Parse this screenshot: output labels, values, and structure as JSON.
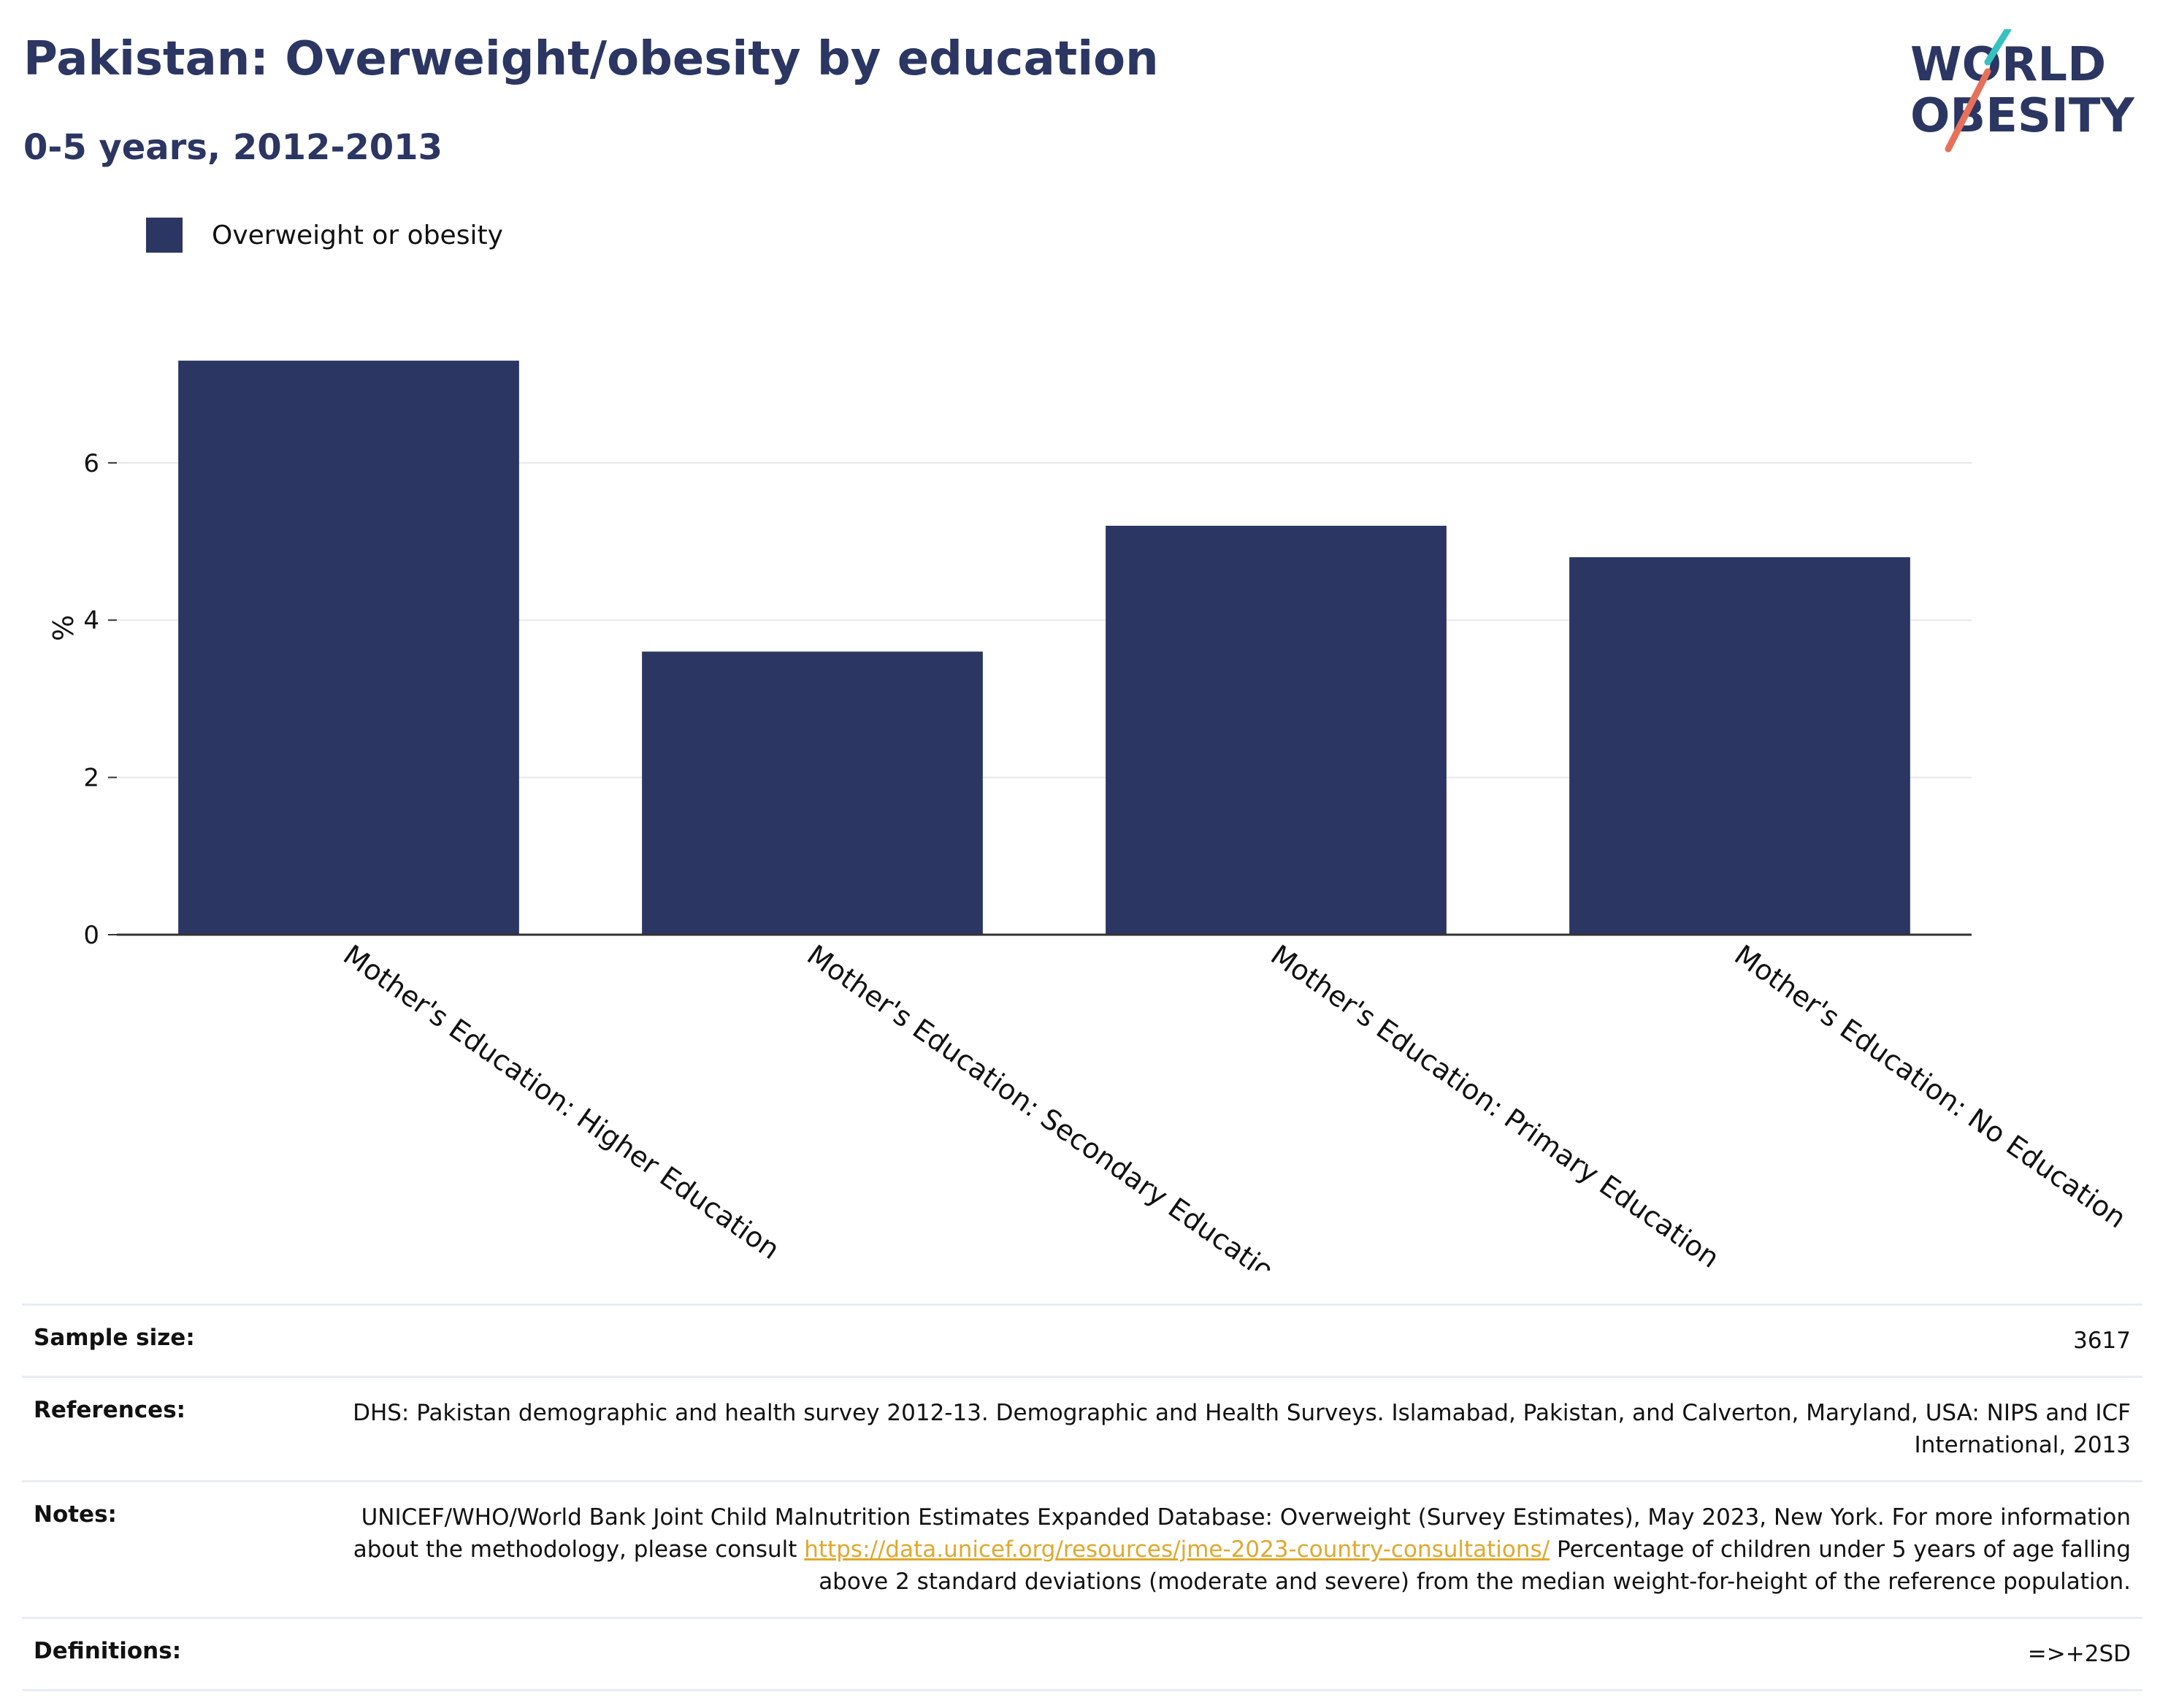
{
  "header": {
    "title": "Pakistan: Overweight/obesity by education",
    "subtitle": "0-5 years, 2012-2013"
  },
  "logo": {
    "line1": "WORLD",
    "line2": "OBESITY",
    "slash_colors": [
      "#35c2c0",
      "#e8705a"
    ]
  },
  "colors": {
    "bar": "#2b3662",
    "title": "#2b3662",
    "gridline": "#e6e8ee",
    "axis": "#333333",
    "link": "#e0a82e"
  },
  "chart_data": {
    "type": "bar",
    "title": "Pakistan: Overweight/obesity by education",
    "subtitle": "0-5 years, 2012-2013",
    "xlabel": "",
    "ylabel": "%",
    "ylim": [
      0,
      7.8
    ],
    "yticks": [
      0,
      2,
      4,
      6
    ],
    "grid": true,
    "legend_position": "top-left",
    "categories": [
      "Mother's Education: Higher Education",
      "Mother's Education: Secondary Education",
      "Mother's Education: Primary Education",
      "Mother's Education: No Education"
    ],
    "series": [
      {
        "name": "Overweight or obesity",
        "values": [
          7.3,
          3.6,
          5.2,
          4.8
        ]
      }
    ]
  },
  "info_table": {
    "sample_size_label": "Sample size:",
    "sample_size_value": "3617",
    "references_label": "References:",
    "references_value": "DHS: Pakistan demographic and health survey 2012-13. Demographic and Health Surveys. Islamabad, Pakistan, and Calverton, Maryland, USA: NIPS and ICF International, 2013",
    "notes_label": "Notes:",
    "notes_before": "UNICEF/WHO/World Bank Joint Child Malnutrition Estimates Expanded Database: Overweight (Survey Estimates), May 2023, New York. For more information about the methodology, please consult ",
    "notes_link": "https://data.unicef.org/resources/jme-2023-country-consultations/",
    "notes_after": " Percentage of children under 5 years of age falling above 2 standard deviations (moderate and severe) from the median weight-for-height of the reference population.",
    "definitions_label": "Definitions:",
    "definitions_value": "=>+2SD"
  }
}
